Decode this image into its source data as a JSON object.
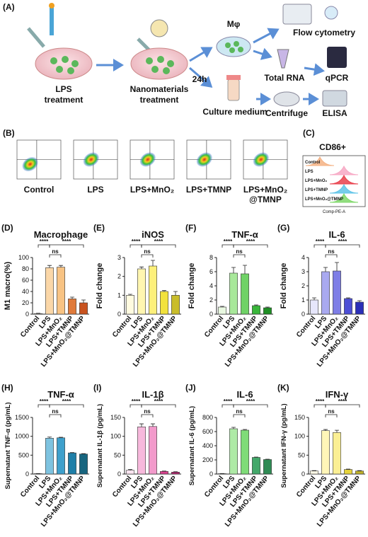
{
  "panel_a": {
    "label": "(A)",
    "steps": {
      "lps": [
        "LPS",
        "treatment"
      ],
      "nano": [
        "Nanomaterials",
        "treatment"
      ],
      "mphi": "Mφ",
      "time": "24h",
      "medium": "Culture medium",
      "flow": "Flow cytometry",
      "rna": "Total RNA",
      "qpcr": "qPCR",
      "centrifuge": "Centrifuge",
      "elisa": "ELISA"
    }
  },
  "panel_b": {
    "label": "(B)",
    "samples": [
      [
        "Control"
      ],
      [
        "LPS"
      ],
      [
        "LPS+MnO₂"
      ],
      [
        "LPS+TMNP"
      ],
      [
        "LPS+MnO₂",
        "@TMNP"
      ]
    ]
  },
  "panel_c": {
    "label": "(C)",
    "title": "CD86+",
    "samples": [
      "Control",
      "LPS",
      "LPS+MnO₂",
      "LPS+TMNP",
      "LPS+MnO₂@TMNP"
    ],
    "x_label": "Comp-PE-A"
  },
  "chart_data": [
    {
      "type": "bar",
      "panel": "(D)",
      "title": "Macrophage",
      "y_label": "M1 macro(%)",
      "categories": [
        "Control",
        "LPS",
        "LPS+MnO₂",
        "LPS+TMNP",
        "LPS+MnO₂@TMNP"
      ],
      "values": [
        1,
        82,
        83,
        27,
        20
      ],
      "errors": [
        0.5,
        4,
        3,
        3,
        5
      ],
      "colors": [
        "#fdf0dc",
        "#fbd7a8",
        "#f8c383",
        "#e07a3a",
        "#c9531f"
      ],
      "ylim": [
        0,
        100
      ],
      "yticks": [
        0,
        20,
        40,
        60,
        80,
        100
      ],
      "annotations": [
        "****",
        "ns",
        "****"
      ]
    },
    {
      "type": "bar",
      "panel": "(E)",
      "title": "iNOS",
      "y_label": "Fold change",
      "categories": [
        "Control",
        "LPS",
        "LPS+MnO₂",
        "LPS+TMNP",
        "LPS+MnO₂@TMNP"
      ],
      "values": [
        1.0,
        2.4,
        2.55,
        1.2,
        1.0
      ],
      "errors": [
        0.05,
        0.1,
        0.3,
        0.05,
        0.2
      ],
      "colors": [
        "#fffbe0",
        "#fff6b0",
        "#fdf07a",
        "#f2e23c",
        "#c9bd2a"
      ],
      "ylim": [
        0,
        3
      ],
      "yticks": [
        0,
        1,
        2,
        3
      ],
      "annotations": [
        "****",
        "ns",
        "****"
      ]
    },
    {
      "type": "bar",
      "panel": "(F)",
      "title": "TNF-α",
      "y_label": "Fold change",
      "categories": [
        "Control",
        "LPS",
        "LPS+MnO₂",
        "LPS+TMNP",
        "LPS+MnO₂@TMNP"
      ],
      "values": [
        1.0,
        5.8,
        5.7,
        1.2,
        0.9
      ],
      "errors": [
        0.1,
        0.8,
        1.2,
        0.1,
        0.1
      ],
      "colors": [
        "#e8f8e0",
        "#a8e89a",
        "#6fd266",
        "#39b63a",
        "#1f8f25"
      ],
      "ylim": [
        0,
        8
      ],
      "yticks": [
        0,
        2,
        4,
        6,
        8
      ],
      "annotations": [
        "****",
        "ns",
        "****"
      ]
    },
    {
      "type": "bar",
      "panel": "(G)",
      "title": "IL-6",
      "y_label": "Fold change",
      "categories": [
        "Control",
        "LPS",
        "LPS+MnO₂",
        "LPS+TMNP",
        "LPS+MnO₂@TMNP"
      ],
      "values": [
        1.0,
        3.0,
        3.05,
        1.1,
        0.85
      ],
      "errors": [
        0.15,
        0.3,
        0.6,
        0.05,
        0.1
      ],
      "colors": [
        "#e6e6fb",
        "#a9a9f0",
        "#7e7ee6",
        "#4d4fd6",
        "#2b2fb8"
      ],
      "ylim": [
        0,
        4
      ],
      "yticks": [
        0,
        1,
        2,
        3,
        4
      ],
      "annotations": [
        "****",
        "ns",
        "****"
      ]
    },
    {
      "type": "bar",
      "panel": "(H)",
      "title": "TNF-α",
      "y_label": "Supernatant TNF-α (pg/mL)",
      "categories": [
        "Control",
        "LPS",
        "LPS+MnO₂",
        "LPS+TMNP",
        "LPS+MnO₂@TMNP"
      ],
      "values": [
        10,
        950,
        960,
        560,
        530
      ],
      "errors": [
        3,
        30,
        15,
        10,
        10
      ],
      "colors": [
        "#e4f4f8",
        "#7ec3e0",
        "#3ea0cc",
        "#1f7fa8",
        "#17657f"
      ],
      "ylim": [
        0,
        1500
      ],
      "yticks": [
        0,
        500,
        1000,
        1500
      ],
      "annotations": [
        "****",
        "ns",
        "****"
      ]
    },
    {
      "type": "bar",
      "panel": "(I)",
      "title": "IL-1β",
      "y_label": "Supernatant IL-1β (pg/mL)",
      "categories": [
        "Control",
        "LPS",
        "LPS+MnO₂",
        "LPS+TMNP",
        "LPS+MnO₂@TMNP"
      ],
      "values": [
        10,
        125,
        126,
        7,
        5
      ],
      "errors": [
        2,
        8,
        7,
        1,
        1
      ],
      "colors": [
        "#fbe4f0",
        "#f7b9dc",
        "#f29acb",
        "#d9428f",
        "#b52a72"
      ],
      "ylim": [
        0,
        150
      ],
      "yticks": [
        0,
        50,
        100,
        150
      ],
      "annotations": [
        "****",
        "ns",
        "****"
      ]
    },
    {
      "type": "bar",
      "panel": "(J)",
      "title": "IL-6",
      "y_label": "Supernatant IL-6 (pg/mL)",
      "categories": [
        "Control",
        "LPS",
        "LPS+MnO₂",
        "LPS+TMNP",
        "LPS+MnO₂@TMNP"
      ],
      "values": [
        5,
        640,
        620,
        235,
        205
      ],
      "errors": [
        2,
        20,
        10,
        5,
        5
      ],
      "colors": [
        "#e8f8e6",
        "#aeeaa6",
        "#7fdc78",
        "#43a86a",
        "#2f8b54"
      ],
      "ylim": [
        0,
        800
      ],
      "yticks": [
        0,
        200,
        400,
        600,
        800
      ],
      "annotations": [
        "****",
        "ns",
        "****"
      ]
    },
    {
      "type": "bar",
      "panel": "(K)",
      "title": "IFN-γ",
      "y_label": "Supernatant IFN-γ (pg/mL)",
      "categories": [
        "Control",
        "LPS",
        "LPS+MnO₂",
        "LPS+TMNP",
        "LPS+MnO₂@TMNP"
      ],
      "values": [
        8,
        115,
        110,
        12,
        8
      ],
      "errors": [
        1,
        3,
        6,
        1,
        1
      ],
      "colors": [
        "#fffbe6",
        "#fff6b8",
        "#fbef94",
        "#e6d43c",
        "#bfb02a"
      ],
      "ylim": [
        0,
        150
      ],
      "yticks": [
        0,
        50,
        100,
        150
      ],
      "annotations": [
        "****",
        "ns",
        "****"
      ]
    }
  ]
}
